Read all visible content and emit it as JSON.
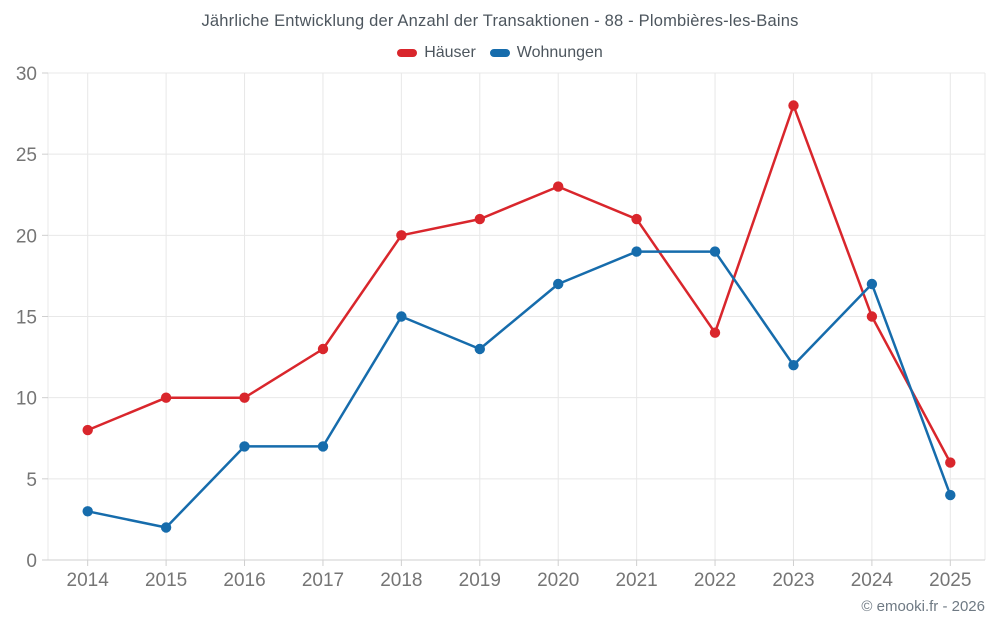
{
  "chart_data": {
    "type": "line",
    "title": "Jährliche Entwicklung der Anzahl der Transaktionen - 88 - Plombières-les-Bains",
    "categories": [
      "2014",
      "2015",
      "2016",
      "2017",
      "2018",
      "2019",
      "2020",
      "2021",
      "2022",
      "2023",
      "2024",
      "2025"
    ],
    "series": [
      {
        "key": "haeuser",
        "name": "Häuser",
        "color": "#d9262c",
        "values": [
          8,
          10,
          10,
          13,
          20,
          21,
          23,
          21,
          14,
          28,
          15,
          6
        ]
      },
      {
        "key": "wohnungen",
        "name": "Wohnungen",
        "color": "#166cac",
        "values": [
          3,
          2,
          7,
          7,
          15,
          13,
          17,
          19,
          19,
          12,
          17,
          4
        ]
      }
    ],
    "ylim": [
      0,
      30
    ],
    "ytick_step": 5,
    "xlabel": "",
    "ylabel": "",
    "grid": true,
    "legend_position": "top"
  },
  "footer": {
    "text": "© emooki.fr - 2026"
  },
  "colors": {
    "grid": "#e8e8e8",
    "axis_line": "#cfcfcf",
    "tick": "#cfcfcf",
    "axis_label": "#757575",
    "title_text": "#4d565e",
    "footer_text": "#6f7a84",
    "background": "#ffffff"
  }
}
